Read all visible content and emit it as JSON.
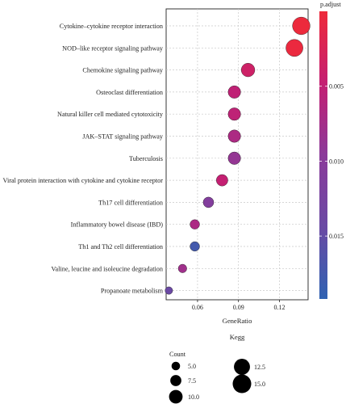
{
  "chart_data": {
    "type": "scatter",
    "subtitle": "Kegg",
    "xlabel": "GeneRatio",
    "xlim": [
      0.037,
      0.141
    ],
    "xticks": [
      "0.06",
      "0.09",
      "0.12"
    ],
    "grid": true,
    "categories": [
      "Cytokine–cytokine receptor interaction",
      "NOD–like receptor signaling pathway",
      "Chemokine signaling pathway",
      "Osteoclast differentiation",
      "Natural killer cell mediated cytotoxicity",
      "JAK–STAT signaling pathway",
      "Tuberculosis",
      "Viral protein interaction with cytokine and cytokine receptor",
      "Th17 cell differentiation",
      "Inflammatory bowel disease (IBD)",
      "Th1 and Th2 cell differentiation",
      "Valine, leucine and isoleucine degradation",
      "Propanoate metabolism"
    ],
    "series": [
      {
        "gene_ratio": [
          0.136,
          0.131,
          0.097,
          0.087,
          0.087,
          0.087,
          0.087,
          0.078,
          0.068,
          0.058,
          0.058,
          0.049,
          0.039
        ],
        "count": [
          14,
          13.5,
          10,
          9,
          9,
          9,
          9,
          8,
          7,
          6,
          6,
          5,
          4
        ],
        "p_adjust": [
          0.0002,
          0.0004,
          0.0038,
          0.0052,
          0.0053,
          0.0068,
          0.0088,
          0.0048,
          0.0108,
          0.0068,
          0.0175,
          0.0078,
          0.0142
        ]
      }
    ],
    "color_legend": {
      "title": "p.adjust",
      "ticks": [
        "0.005",
        "0.010",
        "0.015"
      ],
      "range": [
        0.0,
        0.0192
      ],
      "colors": [
        "#ee2a3a",
        "#c41f72",
        "#8b3a9a",
        "#6a4aa4",
        "#2f62b2"
      ]
    },
    "size_legend": {
      "title": "Count",
      "items": [
        {
          "label": "5.0",
          "value": 5
        },
        {
          "label": "7.5",
          "value": 7.5
        },
        {
          "label": "10.0",
          "value": 10
        },
        {
          "label": "12.5",
          "value": 12.5
        },
        {
          "label": "15.0",
          "value": 15
        }
      ]
    }
  }
}
